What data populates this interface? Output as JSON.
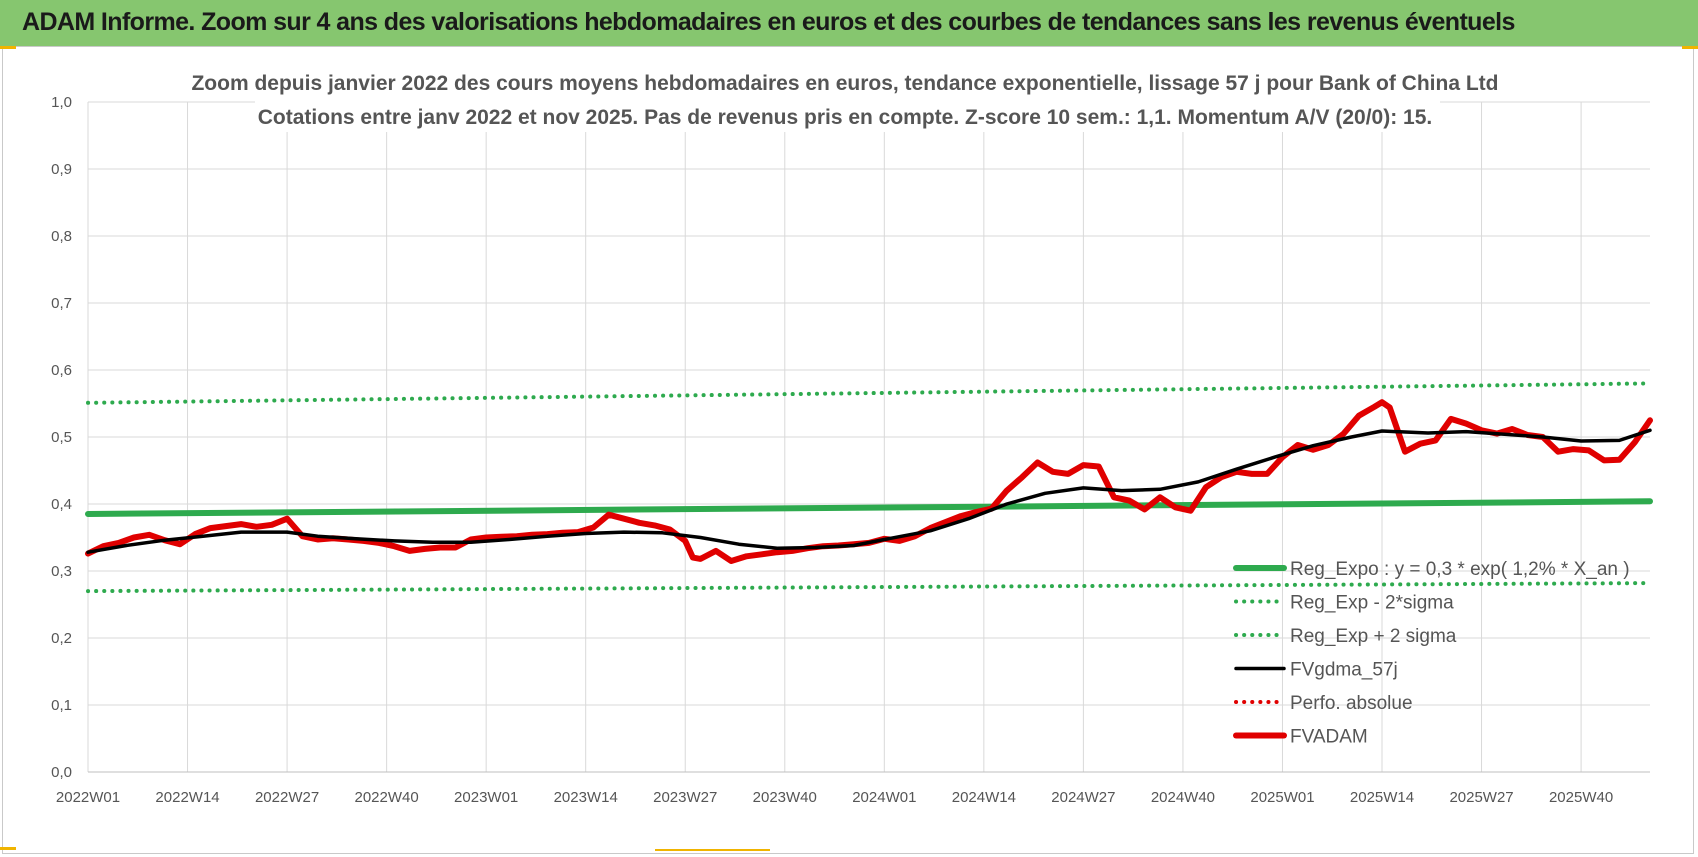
{
  "banner": {
    "title": "ADAM Informe. Zoom sur 4 ans des valorisations hebdomadaires en euros et des courbes de tendances sans les revenus éventuels",
    "color": "#86c66f"
  },
  "chart_data": {
    "type": "line",
    "title_lines": [
      "Zoom depuis janvier 2022 des cours moyens hebdomadaires en euros, tendance exponentielle, lissage 57 j pour Bank of China Ltd",
      "Cotations entre janv 2022 et nov 2025. Pas de revenus pris en compte. Z-score 10 sem.: 1,1. Momentum A/V (20/0): 15."
    ],
    "x_tick_labels": [
      "2022W01",
      "2022W14",
      "2022W27",
      "2022W40",
      "2023W01",
      "2023W14",
      "2023W27",
      "2023W40",
      "2024W01",
      "2024W14",
      "2024W27",
      "2024W40",
      "2025W01",
      "2025W14",
      "2025W27",
      "2025W40"
    ],
    "x_tick_index": [
      0,
      13,
      26,
      39,
      52,
      65,
      78,
      91,
      104,
      117,
      130,
      143,
      156,
      169,
      182,
      195
    ],
    "x_range": [
      0,
      204
    ],
    "y_tick_labels": [
      "0,0",
      "0,1",
      "0,2",
      "0,3",
      "0,4",
      "0,5",
      "0,6",
      "0,7",
      "0,8",
      "0,9",
      "1,0"
    ],
    "ylim": [
      0,
      1.0
    ],
    "grid": true,
    "legend_position": "bottom-right",
    "series": [
      {
        "name": "Reg_Expo : y = 0,3 * exp( 1,2% * X_an )",
        "style": "solid-thick",
        "color": "#2eaa4e",
        "x": [
          0,
          204
        ],
        "values": [
          0.385,
          0.404
        ]
      },
      {
        "name": "Reg_Exp - 2*sigma",
        "style": "dotted",
        "color": "#2eaa4e",
        "x": [
          0,
          204
        ],
        "values": [
          0.27,
          0.282
        ]
      },
      {
        "name": "Reg_Exp + 2 sigma",
        "style": "dotted",
        "color": "#2eaa4e",
        "x": [
          0,
          204
        ],
        "values": [
          0.551,
          0.58
        ]
      },
      {
        "name": "FVgdma_57j",
        "style": "solid",
        "color": "#000000",
        "x": [
          0,
          5,
          10,
          15,
          20,
          26,
          30,
          35,
          40,
          45,
          50,
          55,
          60,
          65,
          70,
          75,
          80,
          85,
          90,
          95,
          100,
          104,
          110,
          115,
          120,
          125,
          130,
          135,
          140,
          145,
          150,
          155,
          160,
          165,
          169,
          175,
          180,
          185,
          190,
          195,
          200,
          204
        ],
        "values": [
          0.328,
          0.338,
          0.346,
          0.352,
          0.358,
          0.358,
          0.352,
          0.348,
          0.345,
          0.343,
          0.343,
          0.347,
          0.352,
          0.356,
          0.358,
          0.357,
          0.35,
          0.34,
          0.334,
          0.335,
          0.338,
          0.347,
          0.36,
          0.378,
          0.4,
          0.416,
          0.424,
          0.42,
          0.422,
          0.433,
          0.452,
          0.47,
          0.487,
          0.5,
          0.509,
          0.506,
          0.508,
          0.504,
          0.5,
          0.494,
          0.495,
          0.51
        ]
      },
      {
        "name": "Perfo. absolue",
        "style": "dotted",
        "color": "#e00000",
        "x": [],
        "values": []
      },
      {
        "name": "FVADAM",
        "style": "solid-thick",
        "color": "#e00000",
        "x": [
          0,
          2,
          4,
          6,
          8,
          10,
          12,
          14,
          16,
          18,
          20,
          22,
          24,
          26,
          28,
          30,
          32,
          34,
          36,
          38,
          40,
          42,
          44,
          46,
          48,
          50,
          52,
          54,
          56,
          58,
          60,
          62,
          64,
          66,
          68,
          70,
          72,
          74,
          76,
          78,
          79,
          80,
          82,
          84,
          86,
          88,
          90,
          92,
          94,
          96,
          98,
          100,
          102,
          104,
          106,
          108,
          110,
          112,
          114,
          116,
          118,
          120,
          122,
          124,
          126,
          128,
          130,
          132,
          134,
          136,
          138,
          140,
          142,
          144,
          146,
          148,
          150,
          152,
          154,
          156,
          158,
          160,
          162,
          164,
          166,
          168,
          169,
          170,
          172,
          174,
          176,
          178,
          180,
          182,
          184,
          186,
          188,
          190,
          192,
          194,
          196,
          198,
          200,
          202,
          204
        ],
        "values": [
          0.326,
          0.337,
          0.342,
          0.35,
          0.354,
          0.346,
          0.34,
          0.355,
          0.364,
          0.367,
          0.37,
          0.366,
          0.369,
          0.378,
          0.352,
          0.347,
          0.349,
          0.347,
          0.345,
          0.342,
          0.337,
          0.33,
          0.333,
          0.335,
          0.335,
          0.347,
          0.35,
          0.351,
          0.352,
          0.354,
          0.355,
          0.357,
          0.358,
          0.365,
          0.384,
          0.378,
          0.372,
          0.368,
          0.362,
          0.345,
          0.32,
          0.318,
          0.33,
          0.315,
          0.322,
          0.325,
          0.328,
          0.33,
          0.334,
          0.337,
          0.338,
          0.34,
          0.342,
          0.348,
          0.345,
          0.352,
          0.364,
          0.373,
          0.382,
          0.388,
          0.393,
          0.42,
          0.44,
          0.462,
          0.448,
          0.445,
          0.458,
          0.456,
          0.41,
          0.405,
          0.392,
          0.41,
          0.395,
          0.39,
          0.425,
          0.44,
          0.448,
          0.445,
          0.445,
          0.47,
          0.488,
          0.481,
          0.488,
          0.505,
          0.532,
          0.545,
          0.552,
          0.544,
          0.478,
          0.49,
          0.495,
          0.527,
          0.52,
          0.51,
          0.505,
          0.512,
          0.503,
          0.5,
          0.478,
          0.482,
          0.48,
          0.465,
          0.466,
          0.492,
          0.525
        ]
      }
    ]
  }
}
